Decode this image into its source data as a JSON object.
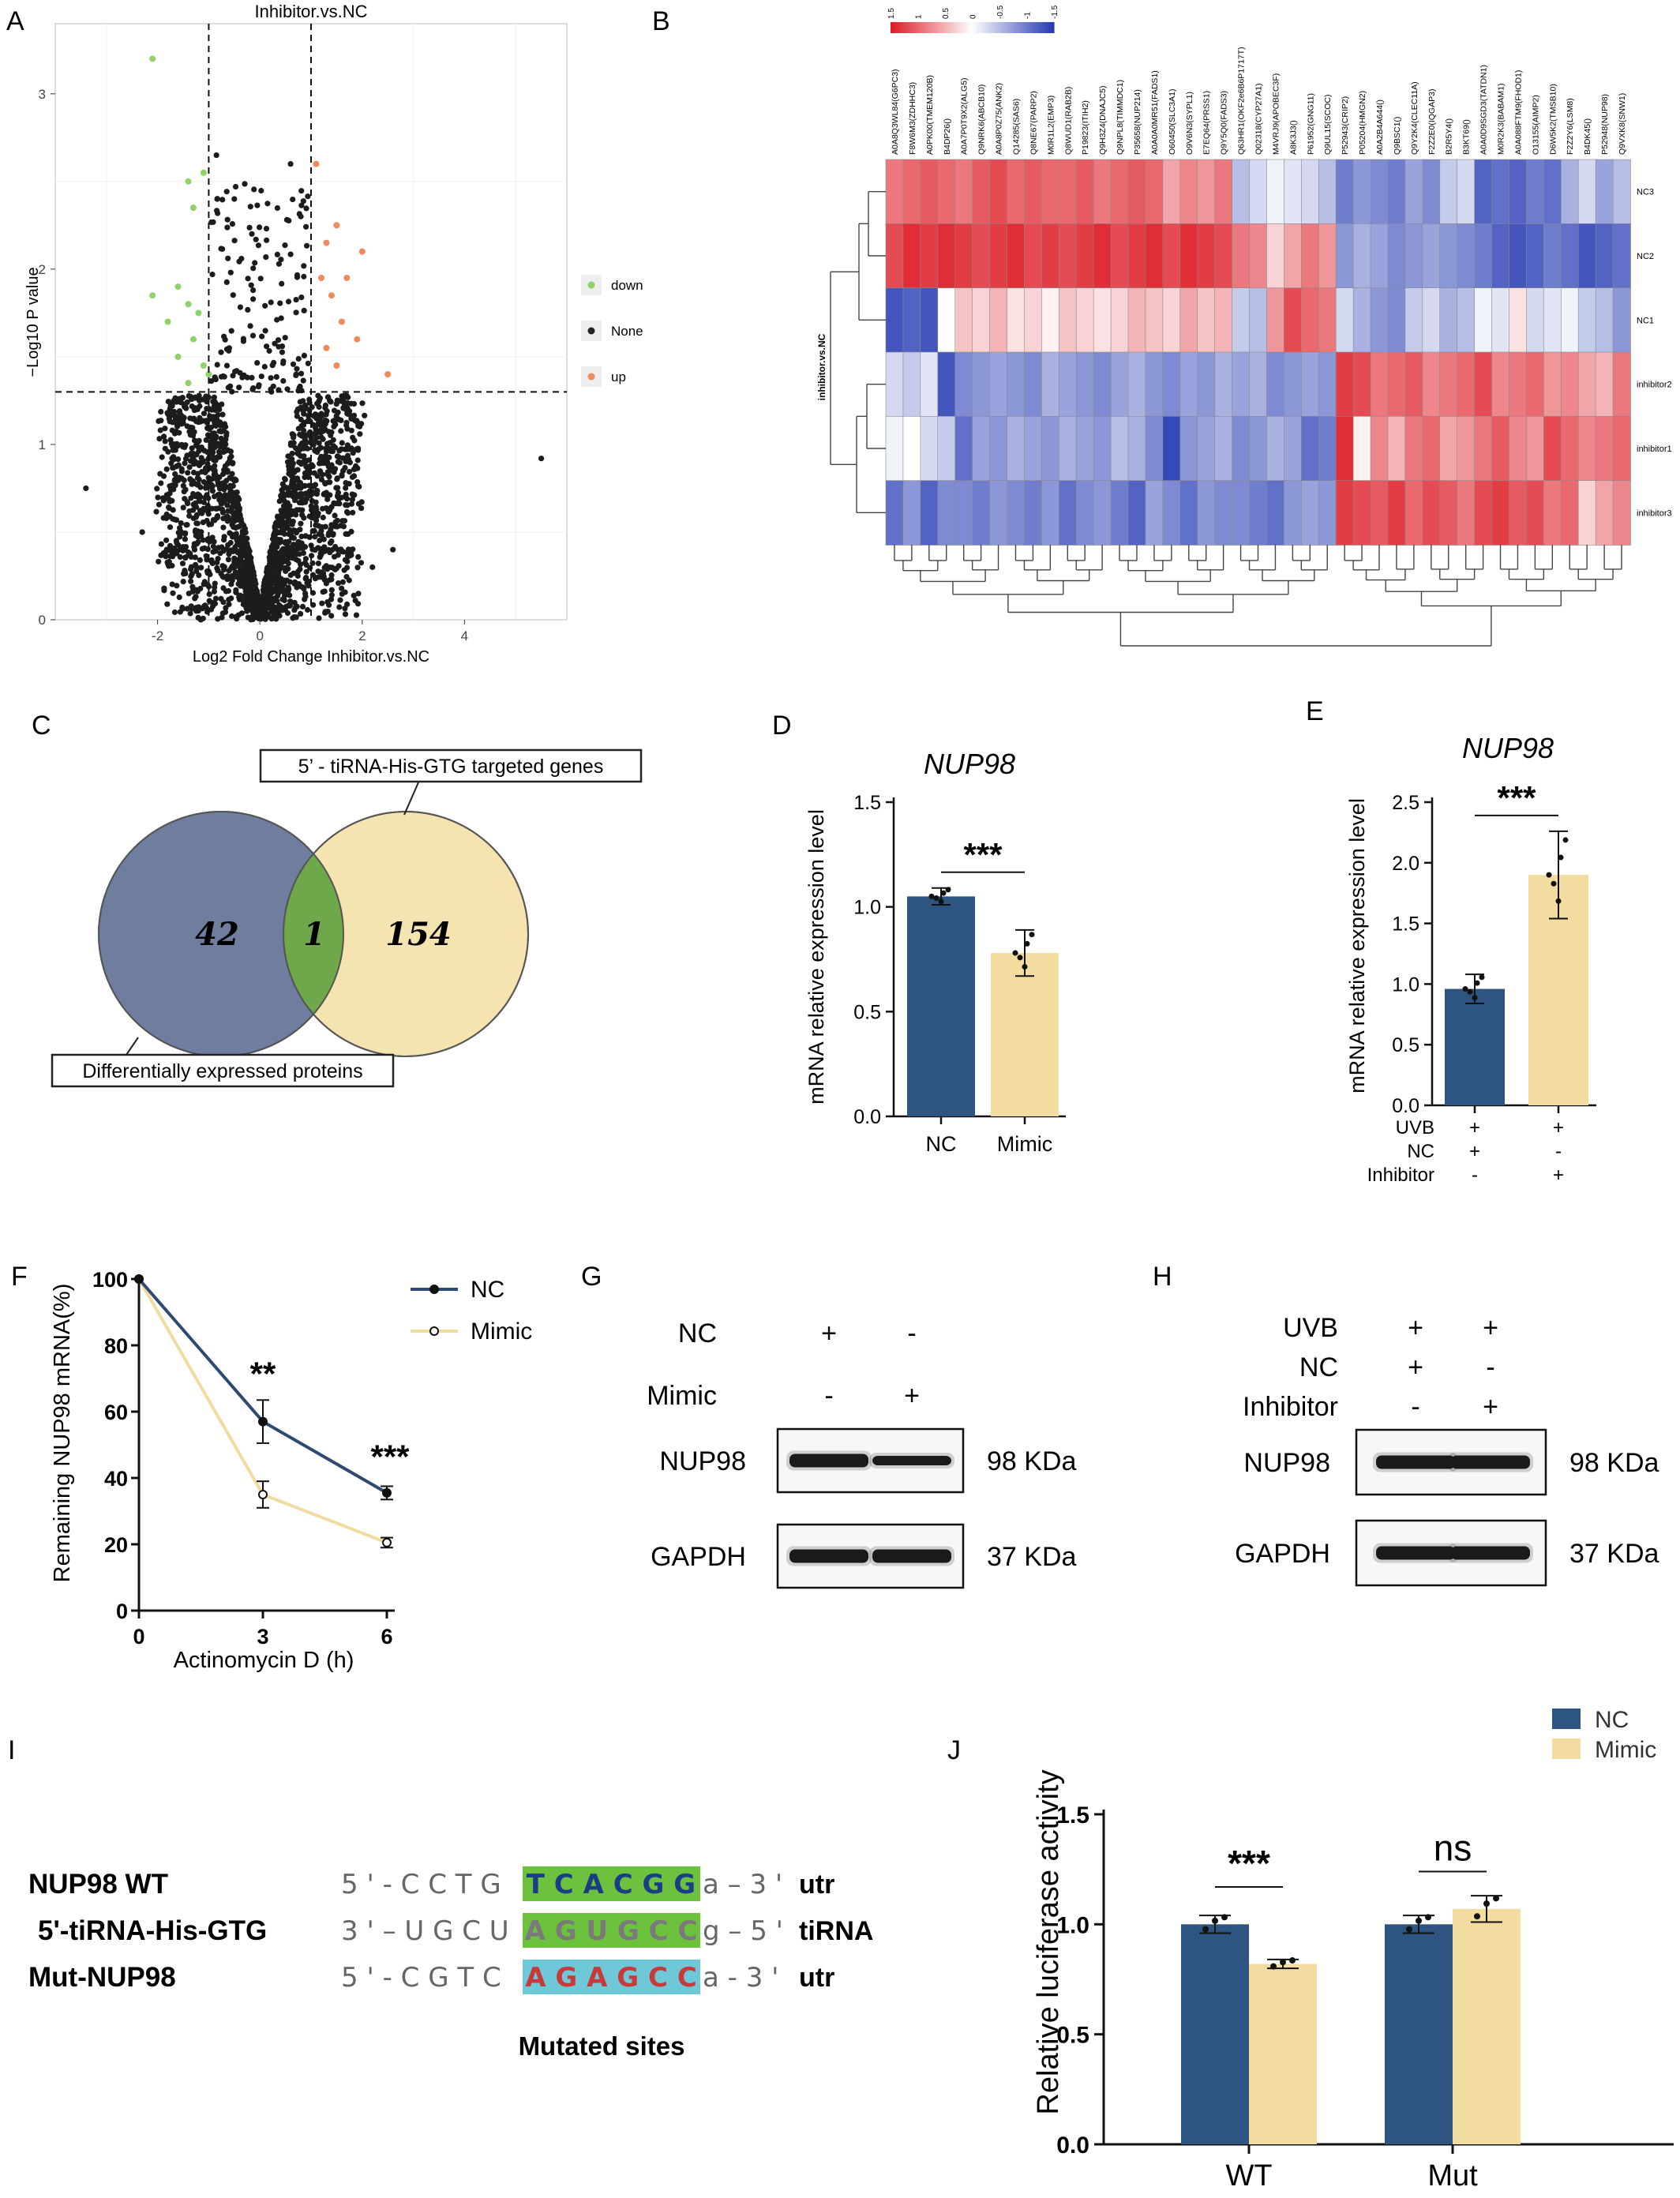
{
  "panels": {
    "A": "A",
    "B": "B",
    "C": "C",
    "D": "D",
    "E": "E",
    "F": "F",
    "G": "G",
    "H": "H",
    "I": "I",
    "J": "J"
  },
  "volcano": {
    "title": "Inhibitor.vs.NC",
    "ylabel": "−Log10 P value",
    "xlabel": "Log2 Fold Change Inhibitor.vs.NC",
    "legend": [
      {
        "label": "down",
        "color": "#8fd16a"
      },
      {
        "label": "None",
        "color": "#222222"
      },
      {
        "label": "up",
        "color": "#f08a5d"
      }
    ],
    "x_ticks": [
      "-2",
      "0",
      "2",
      "4"
    ],
    "y_ticks": [
      "0",
      "1",
      "2",
      "3"
    ],
    "xlim": [
      -4,
      6
    ],
    "ylim": [
      0,
      3.4
    ],
    "thresholds": {
      "fc": [
        -1,
        1
      ],
      "p": 1.3
    },
    "up_points": [
      [
        1.1,
        2.6
      ],
      [
        1.5,
        2.25
      ],
      [
        1.3,
        2.15
      ],
      [
        2.0,
        2.1
      ],
      [
        1.2,
        1.95
      ],
      [
        1.7,
        1.95
      ],
      [
        1.4,
        1.85
      ],
      [
        1.6,
        1.7
      ],
      [
        1.9,
        1.6
      ],
      [
        1.3,
        1.55
      ],
      [
        1.5,
        1.45
      ],
      [
        2.5,
        1.4
      ]
    ],
    "down_points": [
      [
        -2.1,
        3.2
      ],
      [
        -1.1,
        2.55
      ],
      [
        -1.4,
        2.5
      ],
      [
        -1.3,
        2.35
      ],
      [
        -1.6,
        1.9
      ],
      [
        -2.1,
        1.85
      ],
      [
        -1.4,
        1.8
      ],
      [
        -1.2,
        1.75
      ],
      [
        -1.8,
        1.7
      ],
      [
        -1.3,
        1.6
      ],
      [
        -1.6,
        1.5
      ],
      [
        -1.1,
        1.45
      ],
      [
        -1.0,
        1.4
      ],
      [
        -1.4,
        1.35
      ]
    ],
    "outliers": [
      [
        -3.4,
        0.75
      ],
      [
        5.5,
        0.92
      ],
      [
        -0.85,
        2.65
      ],
      [
        0.6,
        2.6
      ],
      [
        -0.5,
        2.4
      ],
      [
        0.8,
        2.3
      ],
      [
        2.6,
        0.4
      ],
      [
        2.2,
        0.3
      ],
      [
        -2.3,
        0.5
      ]
    ]
  },
  "heatmap": {
    "scale_ticks": [
      "1.5",
      "1",
      "0.5",
      "0",
      "-0.5",
      "-1",
      "-1.5"
    ],
    "group_label": "inhibitor.vs.NC",
    "rows": [
      "NC3",
      "NC2",
      "NC1",
      "inhibitor2",
      "inhibitor1",
      "inhibitor3"
    ],
    "columns": [
      "A0A8Q3WL84(G6PC3)",
      "F8W6M3(ZDHHC3)",
      "A0PK00(TMEM120B)",
      "B4DP26()",
      "A0A7P0T9X2(ALG5)",
      "Q9NRK6(ABCB10)",
      "A0A8P0Z75(ANK2)",
      "Q14285(SAS6)",
      "Q8NE67(PARP2)",
      "M0R1L2(EMP3)",
      "Q8WUD1(RAB2B)",
      "P19823(ITIH2)",
      "Q9H3Z4(DNAJC5)",
      "Q9NPL8(TIMMDC1)",
      "P35658(NUP214)",
      "A0A0A0MR51(FADS1)",
      "O60450(SLC3A1)",
      "O9V6N3(SYPL1)",
      "E7EQ64(PRSS1)",
      "Q9Y5Q0(FADS3)",
      "Q63HR1(OKF2e6B6P1717T)",
      "Q02318(CYP27A1)",
      "M4VRJ9(APOBEC3F)",
      "A8K3J3()",
      "P61952(GNG11)",
      "Q9UL15(SCOC)",
      "P52943(CRIP2)",
      "P05204(HMGN2)",
      "A0A2B4A644()",
      "Q9BSC1()",
      "Q9Y2K4(CLEC11A)",
      "F2Z2E0(IQGAP3)",
      "B2R5Y4()",
      "B3KT69()",
      "A0A0D9SGD3(TATDN1)",
      "M0R2K3(BABAM1)",
      "A0A088FTM9(FHOD1)",
      "O13155(AIMP2)",
      "D6W5K2(TMSB10)",
      "F2Z2Y6(LSM8)",
      "B4DK45()",
      "P52948(NUP98)",
      "Q9VXK8(SNW1)"
    ],
    "matrix": [
      [
        0.9,
        1.0,
        1.1,
        1.0,
        0.9,
        1.1,
        1.2,
        1.0,
        1.1,
        1.0,
        1.0,
        1.1,
        0.9,
        1.0,
        1.1,
        1.0,
        0.6,
        0.8,
        0.7,
        0.9,
        -0.5,
        -0.3,
        -0.1,
        -0.2,
        -0.3,
        -0.5,
        -1.0,
        -0.8,
        -0.9,
        -1.0,
        -0.7,
        -0.9,
        -0.4,
        -0.3,
        -1.2,
        -1.1,
        -1.2,
        -1.0,
        -1.1,
        -0.6,
        -0.3,
        -0.7,
        -0.5
      ],
      [
        1.2,
        1.4,
        1.3,
        1.4,
        1.3,
        1.2,
        1.3,
        1.4,
        1.2,
        1.3,
        1.2,
        1.3,
        1.4,
        1.2,
        1.3,
        1.4,
        1.2,
        1.4,
        1.3,
        1.2,
        0.9,
        0.8,
        0.3,
        0.6,
        0.9,
        0.7,
        -0.8,
        -0.6,
        -0.7,
        -0.9,
        -0.8,
        -0.7,
        -0.8,
        -0.9,
        -1.0,
        -1.2,
        -1.3,
        -1.2,
        -1.0,
        -1.1,
        -1.3,
        -1.2,
        -1.1
      ],
      [
        -1.3,
        -1.2,
        -1.3,
        0.0,
        0.4,
        0.3,
        0.5,
        0.2,
        0.3,
        0.1,
        0.4,
        0.3,
        0.2,
        0.3,
        0.5,
        0.4,
        0.3,
        0.6,
        0.4,
        0.5,
        -0.4,
        -0.5,
        0.7,
        1.2,
        1.0,
        0.9,
        -0.3,
        -0.6,
        -0.8,
        -0.9,
        -0.4,
        -0.3,
        -0.6,
        -0.5,
        -0.1,
        -0.2,
        0.2,
        -0.3,
        -0.2,
        -0.1,
        -0.4,
        -0.5,
        -0.8
      ],
      [
        -0.3,
        -0.4,
        -0.2,
        -1.3,
        -0.9,
        -0.8,
        -0.7,
        -0.8,
        -0.9,
        -0.6,
        -0.7,
        -0.8,
        -0.9,
        -0.7,
        -0.6,
        -0.8,
        -0.9,
        -0.7,
        -0.8,
        -0.6,
        -0.7,
        -0.6,
        -0.9,
        -0.8,
        -0.7,
        -0.8,
        1.3,
        1.2,
        0.9,
        1.0,
        1.1,
        0.8,
        0.9,
        1.0,
        1.2,
        0.8,
        0.9,
        1.0,
        0.7,
        0.8,
        0.6,
        0.5,
        0.9
      ],
      [
        -0.1,
        0.0,
        -0.3,
        -0.4,
        -1.1,
        -0.7,
        -0.8,
        -0.6,
        -0.7,
        -0.8,
        -0.6,
        -0.7,
        -0.8,
        -0.5,
        -0.6,
        -0.9,
        -1.4,
        -0.8,
        -0.7,
        -0.6,
        -0.9,
        -0.8,
        -0.6,
        -0.7,
        -1.1,
        -1.0,
        1.4,
        0.1,
        0.8,
        0.5,
        0.9,
        1.0,
        0.6,
        0.7,
        0.9,
        1.1,
        0.8,
        0.7,
        1.2,
        1.0,
        0.8,
        0.9,
        1.0
      ],
      [
        -1.1,
        -0.8,
        -1.2,
        -0.9,
        -0.9,
        -1.0,
        -0.8,
        -0.9,
        -1.0,
        -0.8,
        -1.1,
        -0.9,
        -0.8,
        -1.0,
        -1.2,
        -0.7,
        -0.9,
        -1.1,
        -0.8,
        -0.9,
        -0.9,
        -1.0,
        -1.1,
        -0.8,
        -0.7,
        -0.8,
        1.3,
        1.2,
        1.1,
        1.3,
        1.0,
        1.2,
        1.1,
        0.9,
        1.2,
        1.3,
        1.1,
        1.2,
        0.9,
        1.0,
        0.3,
        0.6,
        0.8
      ]
    ]
  },
  "venn": {
    "left_count": "42",
    "overlap_count": "1",
    "right_count": "154",
    "top_label": "5’ - tiRNA-His-GTG targeted genes",
    "bottom_label": "Differentially expressed proteins",
    "colors": {
      "left": "#6f7d9e",
      "overlap": "#6fa84a",
      "right": "#f5e3b0"
    }
  },
  "barD": {
    "title": "NUP98",
    "ylabel": "mRNA relative expression level",
    "y_ticks": [
      "0.0",
      "0.5",
      "1.0",
      "1.5"
    ],
    "ylim": [
      0,
      1.5
    ],
    "categories": [
      "NC",
      "Mimic"
    ],
    "values": [
      1.05,
      0.78
    ],
    "errors": [
      0.04,
      0.11
    ],
    "sig": "***",
    "colors": [
      "#2e5481",
      "#f3dc9f"
    ]
  },
  "barE": {
    "title": "NUP98",
    "ylabel": "mRNA relative expression level",
    "y_ticks": [
      "0.0",
      "0.5",
      "1.0",
      "1.5",
      "2.0",
      "2.5"
    ],
    "ylim": [
      0,
      2.5
    ],
    "values": [
      0.96,
      1.9
    ],
    "errors": [
      0.12,
      0.36
    ],
    "sig": "***",
    "conditions": [
      {
        "label": "UVB",
        "marks": [
          "+",
          "+"
        ]
      },
      {
        "label": "NC",
        "marks": [
          "+",
          "-"
        ]
      },
      {
        "label": "Inhibitor",
        "marks": [
          "-",
          "+"
        ]
      }
    ],
    "colors": [
      "#2e5481",
      "#f3dc9f"
    ]
  },
  "lineF": {
    "ylabel": "Remaining NUP98 mRNA(%)",
    "xlabel": "Actinomycin D (h)",
    "x_ticks": [
      "0",
      "3",
      "6"
    ],
    "y_ticks": [
      "0",
      "20",
      "40",
      "60",
      "80",
      "100"
    ],
    "ylim": [
      0,
      100
    ],
    "x": [
      0,
      3,
      6
    ],
    "series": [
      {
        "name": "NC",
        "values": [
          100,
          57,
          35.5
        ],
        "errors": [
          0,
          6.5,
          2
        ],
        "color": "#2e4a73"
      },
      {
        "name": "Mimic",
        "values": [
          100,
          35,
          20.5
        ],
        "errors": [
          0,
          4,
          1.5
        ],
        "color": "#f0dc9e"
      }
    ],
    "sig": [
      "**",
      "***"
    ]
  },
  "blotG": {
    "rows": [
      {
        "label": "NC",
        "marks": [
          "+",
          "-"
        ]
      },
      {
        "label": "Mimic",
        "marks": [
          "-",
          "+"
        ]
      }
    ],
    "bands": [
      {
        "label": "NUP98",
        "size": "98 KDa"
      },
      {
        "label": "GAPDH",
        "size": "37 KDa"
      }
    ]
  },
  "blotH": {
    "rows": [
      {
        "label": "UVB",
        "marks": [
          "+",
          "+"
        ]
      },
      {
        "label": "NC",
        "marks": [
          "+",
          "-"
        ]
      },
      {
        "label": "Inhibitor",
        "marks": [
          "-",
          "+"
        ]
      }
    ],
    "bands": [
      {
        "label": "NUP98",
        "size": "98 KDa"
      },
      {
        "label": "GAPDH",
        "size": "37 KDa"
      }
    ]
  },
  "seqI": {
    "rows": [
      {
        "name": "NUP98 WT",
        "prefix": "5 ' - C C T G",
        "site": "T C A C G G",
        "suffix": "a – 3 '",
        "tag": "utr",
        "site_bg": "#6cc13d",
        "site_fg": "#1a3e86"
      },
      {
        "name": "5'-tiRNA-His-GTG",
        "prefix": "3 ' – U G C U",
        "site": "A G U G C C",
        "suffix": "g – 5 '",
        "tag": "tiRNA",
        "site_bg": "#6cc13d",
        "site_fg": "#7a7a7a"
      },
      {
        "name": "Mut-NUP98",
        "prefix": "5 ' - C G T C",
        "site": "A G A G C C",
        "suffix": "a - 3 '",
        "tag": "utr",
        "site_bg": "#6ec8d8",
        "site_fg": "#c83a3a"
      }
    ],
    "footer": "Mutated sites"
  },
  "barJ": {
    "ylabel": "Relative luciferase activity",
    "y_ticks": [
      "0.0",
      "0.5",
      "1.0",
      "1.5"
    ],
    "ylim": [
      0,
      1.5
    ],
    "categories": [
      "WT",
      "Mut"
    ],
    "series": [
      {
        "name": "NC",
        "values": [
          1.0,
          1.0
        ],
        "errors": [
          0.04,
          0.04
        ],
        "color": "#2e5481"
      },
      {
        "name": "Mimic",
        "values": [
          0.82,
          1.07
        ],
        "errors": [
          0.02,
          0.06
        ],
        "color": "#f3dc9f"
      }
    ],
    "sig": [
      "***",
      "ns"
    ]
  },
  "chart_data": [
    {
      "type": "scatter",
      "title": "Inhibitor.vs.NC",
      "xlabel": "Log2 Fold Change Inhibitor.vs.NC",
      "ylabel": "−Log10 P value",
      "xlim": [
        -4,
        6
      ],
      "ylim": [
        0,
        3.4
      ],
      "series": [
        {
          "name": "up"
        },
        {
          "name": "down"
        },
        {
          "name": "None"
        }
      ]
    },
    {
      "type": "heatmap",
      "rows": [
        "NC3",
        "NC2",
        "NC1",
        "inhibitor2",
        "inhibitor1",
        "inhibitor3"
      ]
    },
    {
      "type": "bar",
      "title": "NUP98",
      "categories": [
        "NC",
        "Mimic"
      ],
      "values": [
        1.05,
        0.78
      ],
      "ylabel": "mRNA relative expression level",
      "ylim": [
        0,
        1.5
      ]
    },
    {
      "type": "bar",
      "title": "NUP98",
      "categories": [
        "UVB+NC",
        "UVB+Inhibitor"
      ],
      "values": [
        0.96,
        1.9
      ],
      "ylabel": "mRNA relative expression level",
      "ylim": [
        0,
        2.5
      ]
    },
    {
      "type": "line",
      "x": [
        0,
        3,
        6
      ],
      "xlabel": "Actinomycin D (h)",
      "ylabel": "Remaining NUP98 mRNA(%)",
      "series": [
        {
          "name": "NC",
          "values": [
            100,
            57,
            35.5
          ]
        },
        {
          "name": "Mimic",
          "values": [
            100,
            35,
            20.5
          ]
        }
      ],
      "ylim": [
        0,
        100
      ]
    },
    {
      "type": "bar",
      "categories": [
        "WT",
        "Mut"
      ],
      "series": [
        {
          "name": "NC",
          "values": [
            1.0,
            1.0
          ]
        },
        {
          "name": "Mimic",
          "values": [
            0.82,
            1.07
          ]
        }
      ],
      "ylabel": "Relative luciferase activity",
      "ylim": [
        0,
        1.5
      ]
    }
  ]
}
